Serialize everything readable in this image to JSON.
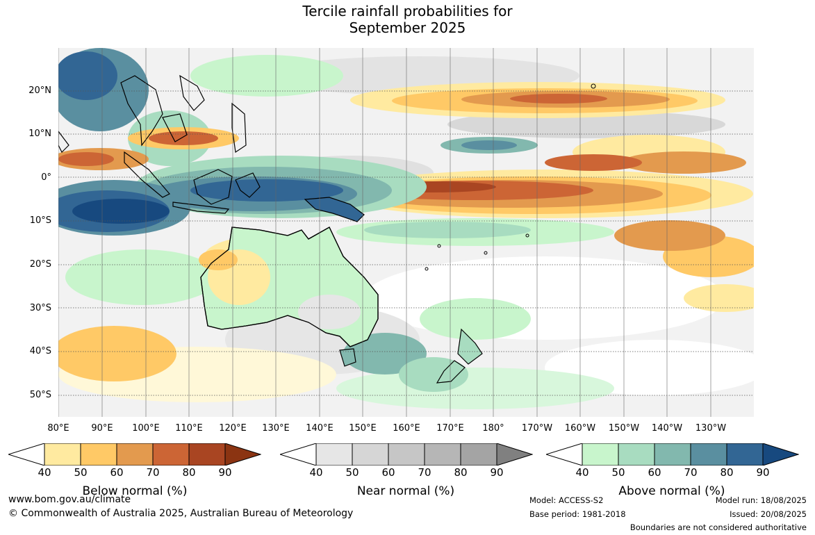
{
  "title": {
    "line1": "Tercile rainfall probabilities for",
    "line2": "September 2025"
  },
  "axes": {
    "lat_labels": [
      "20°N",
      "10°N",
      "0°",
      "10°S",
      "20°S",
      "30°S",
      "40°S",
      "50°S"
    ],
    "lon_labels": [
      "80°E",
      "90°E",
      "100°E",
      "110°E",
      "120°E",
      "130°E",
      "140°E",
      "150°E",
      "160°E",
      "170°E",
      "180°",
      "170°W",
      "160°W",
      "150°W",
      "140°W",
      "130°W"
    ],
    "gridlines": "dotted"
  },
  "colorbars": [
    {
      "name": "below",
      "title": "Below normal (%)",
      "ticks": [
        "40",
        "50",
        "60",
        "70",
        "80",
        "90"
      ],
      "colors": [
        "#ffffff",
        "#ffeaa0",
        "#ffc966",
        "#e39a4e",
        "#cc6535",
        "#a94522",
        "#8b3412"
      ]
    },
    {
      "name": "near",
      "title": "Near normal (%)",
      "ticks": [
        "40",
        "50",
        "60",
        "70",
        "80",
        "90"
      ],
      "colors": [
        "#ffffff",
        "#e6e6e6",
        "#d6d6d6",
        "#c6c6c6",
        "#b6b6b6",
        "#a4a4a4",
        "#808080"
      ]
    },
    {
      "name": "above",
      "title": "Above normal (%)",
      "ticks": [
        "40",
        "50",
        "60",
        "70",
        "80",
        "90"
      ],
      "colors": [
        "#ffffff",
        "#c8f5cc",
        "#a8dcc0",
        "#82b8ae",
        "#5a8fa0",
        "#326694",
        "#17497f"
      ]
    }
  ],
  "footer": {
    "url": "www.bom.gov.au/climate",
    "copyright": "© Commonwealth of Australia 2025, Australian Bureau of Meteorology",
    "model": "Model: ACCESS-S2",
    "base_period": "Base period: 1981-2018",
    "model_run": "Model run: 18/08/2025",
    "issued": "Issued: 20/08/2025",
    "boundaries": "Boundaries are not considered authoritative"
  }
}
